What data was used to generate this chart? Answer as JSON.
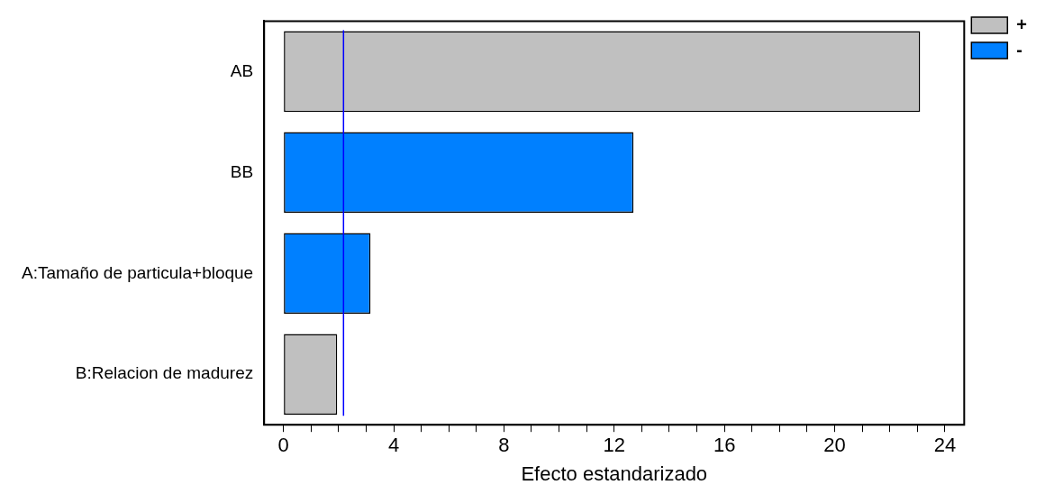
{
  "chart_data": {
    "type": "bar",
    "orientation": "horizontal",
    "stacked": true,
    "xlabel": "Efecto estandarizado",
    "categories": [
      "AB",
      "BB",
      "A:Tamaño de particula+bloque",
      "B:Relacion de madurez"
    ],
    "series": [
      {
        "name": "+",
        "color": "#c0c0c0",
        "values": [
          23.1,
          null,
          null,
          1.95
        ]
      },
      {
        "name": "-",
        "color": "#0080ff",
        "values": [
          null,
          12.7,
          3.16,
          null
        ]
      }
    ],
    "xlim": [
      -0.7,
      24.7
    ],
    "xticks": [
      0,
      {
        "value": 1,
        "label": null
      },
      {
        "value": 2,
        "label": null
      },
      {
        "value": 3,
        "label": null
      },
      4,
      {
        "value": 5,
        "label": null
      },
      {
        "value": 6,
        "label": null
      },
      {
        "value": 7,
        "label": null
      },
      8,
      {
        "value": 9,
        "label": null
      },
      {
        "value": 10,
        "label": null
      },
      {
        "value": 11,
        "label": null
      },
      12,
      {
        "value": 13,
        "label": null
      },
      {
        "value": 14,
        "label": null
      },
      {
        "value": 15,
        "label": null
      },
      16,
      {
        "value": 17,
        "label": null
      },
      {
        "value": 18,
        "label": null
      },
      {
        "value": 19,
        "label": null
      },
      20,
      {
        "value": 21,
        "label": null
      },
      {
        "value": 22,
        "label": null
      },
      {
        "value": 23,
        "label": null
      },
      24
    ],
    "ref_lines": [
      {
        "axis": "x",
        "value": 2.18,
        "color": "#0000ff"
      }
    ],
    "grid": false,
    "legend": "top right"
  }
}
